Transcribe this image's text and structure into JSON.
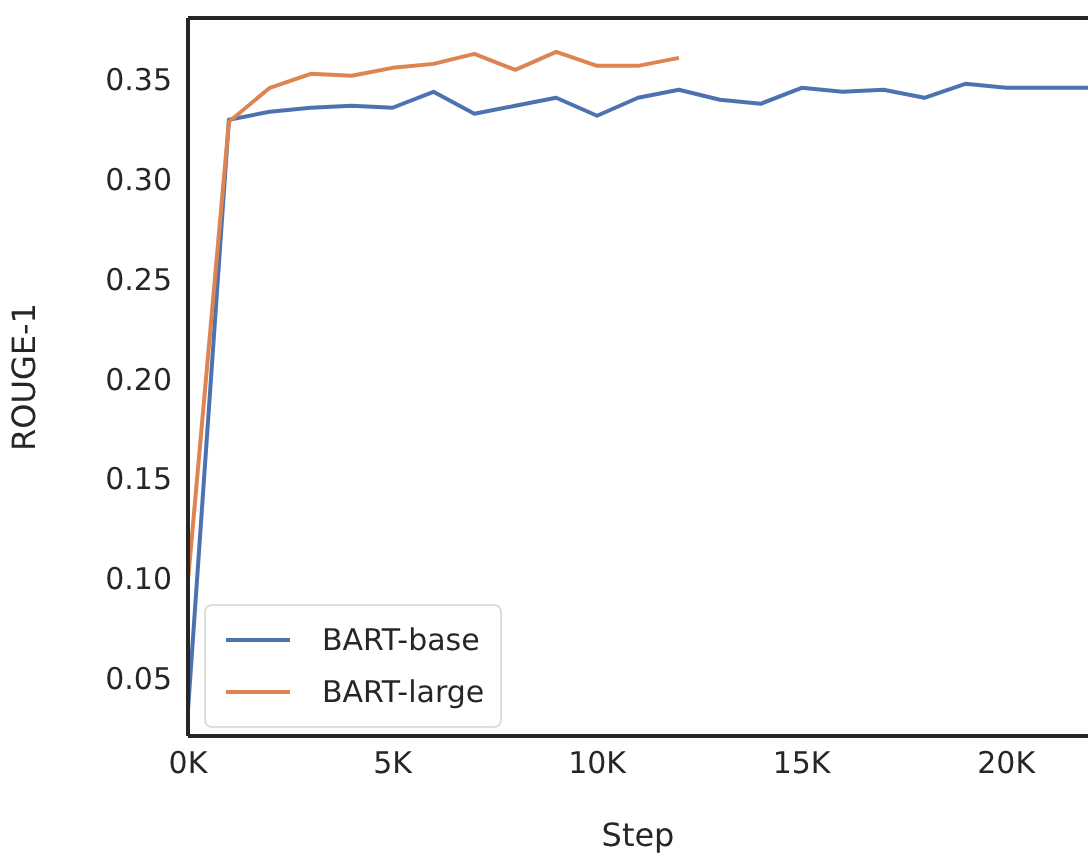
{
  "chart_data": {
    "type": "line",
    "xlabel": "Step",
    "ylabel": "ROUGE-1",
    "xlim": [
      0,
      22000
    ],
    "xticks": [
      {
        "value": 0,
        "label": "0K"
      },
      {
        "value": 5000,
        "label": "5K"
      },
      {
        "value": 10000,
        "label": "10K"
      },
      {
        "value": 15000,
        "label": "15K"
      },
      {
        "value": 20000,
        "label": "20K"
      }
    ],
    "ylim": [
      0.021,
      0.381
    ],
    "yticks": [
      0.05,
      {
        "value": 0.1,
        "label": "0.10"
      },
      0.15,
      {
        "value": 0.2,
        "label": "0.20"
      },
      0.25,
      {
        "value": 0.3,
        "label": "0.30"
      },
      0.35
    ],
    "grid": false,
    "legend": "bottom left",
    "marker": "none",
    "line_style": "solid",
    "series": [
      {
        "name": "BART-base",
        "color": "#4c72b0",
        "x": [
          0,
          1000,
          2000,
          3000,
          4000,
          5000,
          6000,
          7000,
          8000,
          9000,
          10000,
          11000,
          12000,
          13000,
          14000,
          15000,
          16000,
          17000,
          18000,
          19000,
          20000,
          21000,
          22000
        ],
        "values": [
          0.034,
          0.33,
          0.334,
          0.336,
          0.337,
          0.336,
          0.344,
          0.333,
          0.337,
          0.341,
          0.332,
          0.341,
          0.345,
          0.34,
          0.338,
          0.346,
          0.344,
          0.345,
          0.341,
          0.348,
          0.346,
          0.346,
          0.346
        ]
      },
      {
        "name": "BART-large",
        "color": "#dd8452",
        "x": [
          0,
          1000,
          2000,
          3000,
          4000,
          5000,
          6000,
          7000,
          8000,
          9000,
          10000,
          11000,
          12000
        ],
        "values": [
          0.099,
          0.329,
          0.346,
          0.353,
          0.352,
          0.356,
          0.358,
          0.363,
          0.355,
          0.364,
          0.357,
          0.357,
          0.361
        ]
      }
    ]
  }
}
